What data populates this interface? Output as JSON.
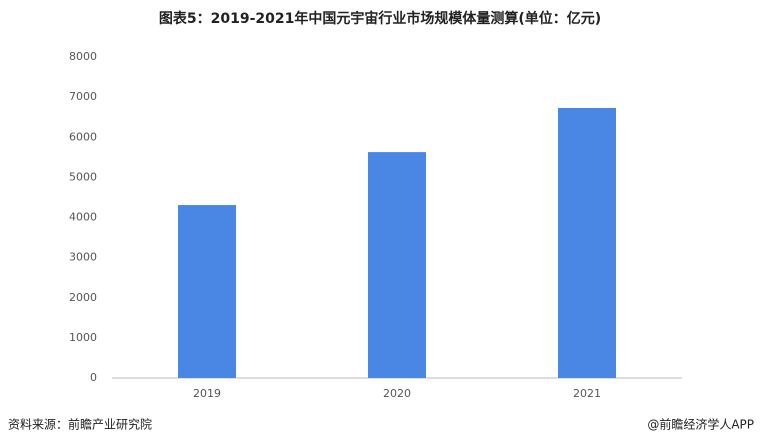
{
  "chart_data": {
    "type": "bar",
    "title": "图表5：2019-2021年中国元宇宙行业市场规模体量测算(单位：亿元)",
    "categories": [
      "2019",
      "2020",
      "2021"
    ],
    "values": [
      4310,
      5630,
      6730
    ],
    "color": "#4a86e3",
    "ylim": [
      0,
      8000
    ],
    "yticks": [
      0,
      1000,
      2000,
      3000,
      4000,
      5000,
      6000,
      7000,
      8000
    ],
    "grid": false,
    "source": "资料来源：前瞻产业研究院",
    "credit": "@前瞻经济学人APP"
  }
}
